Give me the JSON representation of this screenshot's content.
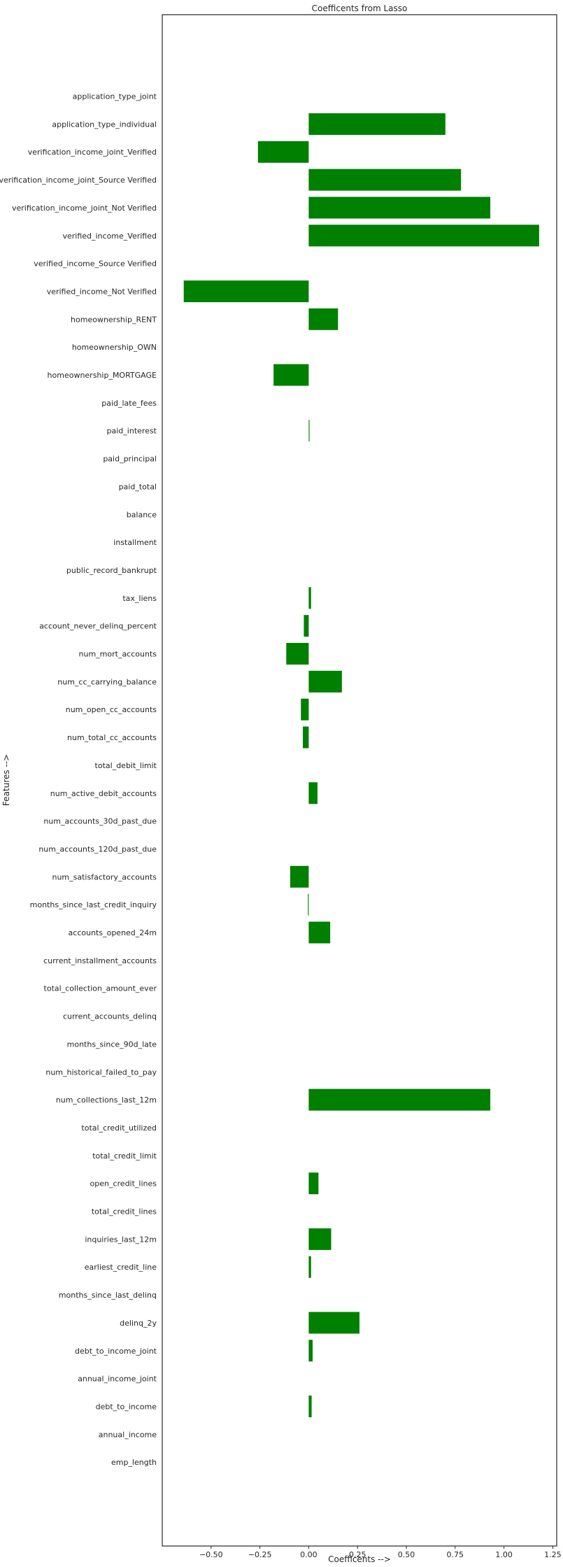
{
  "chart_data": {
    "type": "bar",
    "orientation": "horizontal",
    "title": "Coefficents from Lasso",
    "xlabel": "Coefficents -->",
    "ylabel": "Features -->",
    "xlim": [
      -0.75,
      1.27
    ],
    "xticks": [
      -0.5,
      -0.25,
      0.0,
      0.25,
      0.5,
      0.75,
      1.0,
      1.25
    ],
    "xtick_labels": [
      "−0.50",
      "−0.25",
      "0.00",
      "0.25",
      "0.50",
      "0.75",
      "1.00",
      "1.25"
    ],
    "grid": false,
    "bar_color": "#008000",
    "categories": [
      "application_type_joint",
      "application_type_individual",
      "verification_income_joint_Verified",
      "verification_income_joint_Source Verified",
      "verification_income_joint_Not Verified",
      "verified_income_Verified",
      "verified_income_Source Verified",
      "verified_income_Not Verified",
      "homeownership_RENT",
      "homeownership_OWN",
      "homeownership_MORTGAGE",
      "paid_late_fees",
      "paid_interest",
      "paid_principal",
      "paid_total",
      "balance",
      "installment",
      "public_record_bankrupt",
      "tax_liens",
      "account_never_delinq_percent",
      "num_mort_accounts",
      "num_cc_carrying_balance",
      "num_open_cc_accounts",
      "num_total_cc_accounts",
      "total_debit_limit",
      "num_active_debit_accounts",
      "num_accounts_30d_past_due",
      "num_accounts_120d_past_due",
      "num_satisfactory_accounts",
      "months_since_last_credit_inquiry",
      "accounts_opened_24m",
      "current_installment_accounts",
      "total_collection_amount_ever",
      "current_accounts_delinq",
      "months_since_90d_late",
      "num_historical_failed_to_pay",
      "num_collections_last_12m",
      "total_credit_utilized",
      "total_credit_limit",
      "open_credit_lines",
      "total_credit_lines",
      "inquiries_last_12m",
      "earliest_credit_line",
      "months_since_last_delinq",
      "delinq_2y",
      "debt_to_income_joint",
      "annual_income_joint",
      "debt_to_income",
      "annual_income",
      "emp_length"
    ],
    "values": [
      0.0,
      0.7,
      -0.26,
      0.78,
      0.93,
      1.18,
      0.0,
      -0.64,
      0.15,
      0.0,
      -0.18,
      0.0,
      0.004,
      0.0,
      0.0,
      0.0,
      0.0,
      0.0,
      0.012,
      -0.025,
      -0.115,
      0.17,
      -0.04,
      -0.03,
      0.0,
      0.045,
      0.0,
      0.0,
      -0.095,
      -0.004,
      0.11,
      0.0,
      0.0,
      0.0,
      0.0,
      0.0,
      0.93,
      0.0,
      0.0,
      0.05,
      0.0,
      0.115,
      0.012,
      0.0,
      0.26,
      0.02,
      0.0,
      0.015,
      0.0,
      0.0
    ]
  }
}
